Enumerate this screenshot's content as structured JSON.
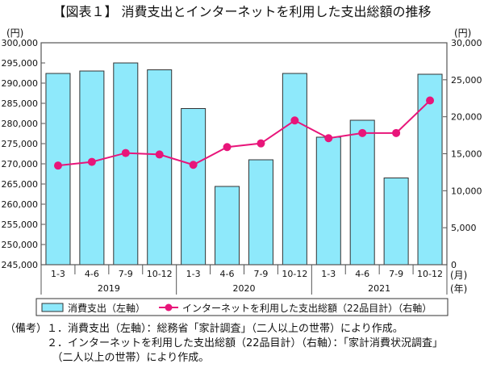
{
  "chart_data": {
    "type": "bar+line",
    "title": "【図表１】 消費支出とインターネットを利用した支出総額の推移",
    "categories": [
      "1-3",
      "4-6",
      "7-9",
      "10-12",
      "1-3",
      "4-6",
      "7-9",
      "10-12",
      "1-3",
      "4-6",
      "7-9",
      "10-12"
    ],
    "years": [
      {
        "label": "2019",
        "span": 4
      },
      {
        "label": "2020",
        "span": 4
      },
      {
        "label": "2021",
        "span": 4
      }
    ],
    "x_unit_month": "(月)",
    "x_unit_year": "(年)",
    "left_axis": {
      "unit": "(円)",
      "ylim": [
        245000,
        300000
      ],
      "step": 5000,
      "ticks": [
        "245,000",
        "250,000",
        "255,000",
        "260,000",
        "265,000",
        "270,000",
        "275,000",
        "280,000",
        "285,000",
        "290,000",
        "295,000",
        "300,000"
      ]
    },
    "right_axis": {
      "unit": "(円)",
      "ylim": [
        0,
        30000
      ],
      "step": 5000,
      "ticks": [
        "0",
        "5,000",
        "10,000",
        "15,000",
        "20,000",
        "25,000",
        "30,000"
      ]
    },
    "series": [
      {
        "name": "消費支出（左軸）",
        "type": "bar",
        "axis": "left",
        "color": "#8ee9fb",
        "values": [
          292400,
          293000,
          295000,
          293300,
          283700,
          264400,
          271000,
          292400,
          276600,
          280800,
          266500,
          292200
        ]
      },
      {
        "name": "インターネットを利用した支出総額（22品目計）（右軸）",
        "type": "line",
        "axis": "right",
        "color": "#e8157a",
        "values": [
          13400,
          13900,
          15100,
          14900,
          13500,
          15900,
          16400,
          19500,
          17100,
          17800,
          17800,
          22200
        ]
      }
    ],
    "legend_placement": "bottom",
    "grid": false
  },
  "notes": [
    "（備考）１．消費支出（左軸）：総務省「家計調査」（二人以上の世帯）により作成。",
    "　　　　２．インターネットを利用した支出総額（22品目計）（右軸）：「家計消費状況調査」",
    "　　　　　（二人以上の世帯）により作成。"
  ]
}
